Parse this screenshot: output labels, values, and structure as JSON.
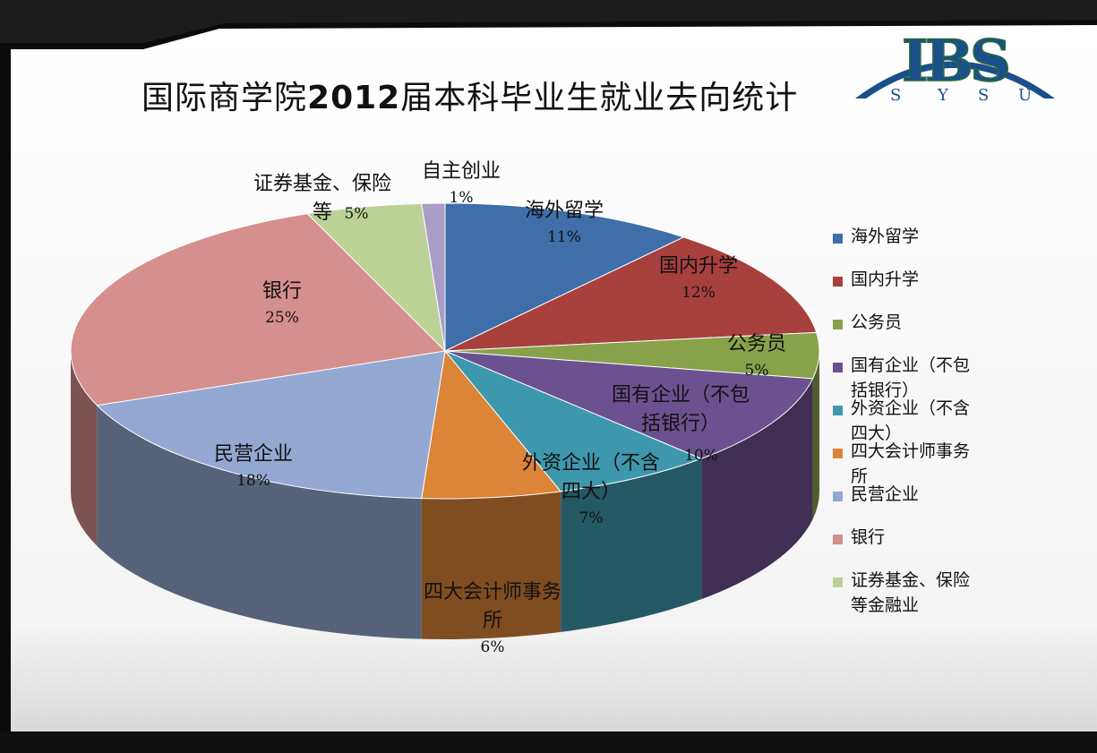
{
  "title": {
    "main": "国际商学院",
    "year": "2012",
    "rest": "届本科毕业生就业去向统计"
  },
  "logo": {
    "letters": "IBS",
    "sub": [
      "S",
      "Y",
      "S",
      "U"
    ],
    "colors": [
      "#1a4f8a",
      "#2a6a3a"
    ]
  },
  "chart_data": {
    "type": "pie",
    "title": "国际商学院2012届本科毕业生就业去向统计",
    "three_d": true,
    "legend_position": "right",
    "slices": [
      {
        "label": "海外留学",
        "legend": "海外留学",
        "value": 11,
        "pct_label": "11%",
        "color": "#3f6ea8"
      },
      {
        "label": "国内升学",
        "legend": "国内升学",
        "value": 12,
        "pct_label": "12%",
        "color": "#a8403e"
      },
      {
        "label": "公务员",
        "legend": "公务员",
        "value": 5,
        "pct_label": "5%",
        "color": "#87a24b"
      },
      {
        "label": "国有企业（不包括银行）",
        "legend": "国有企业（不包括银行）",
        "value": 10,
        "pct_label": "10%",
        "color": "#6c5190"
      },
      {
        "label": "外资企业（不含四大）",
        "legend": "外资企业（不含四大）",
        "value": 7,
        "pct_label": "7%",
        "color": "#3e98ad"
      },
      {
        "label": "四大会计师事务所",
        "legend": "四大会计师事务所",
        "value": 6,
        "pct_label": "6%",
        "color": "#dc8438"
      },
      {
        "label": "民营企业",
        "legend": "民营企业",
        "value": 18,
        "pct_label": "18%",
        "color": "#93a9d2"
      },
      {
        "label": "银行",
        "legend": "银行",
        "value": 25,
        "pct_label": "25%",
        "color": "#d58f8d"
      },
      {
        "label": "证券基金、保险等",
        "legend": "证券基金、保险等金融业",
        "value": 5,
        "pct_label": "5%",
        "color": "#bcd197"
      },
      {
        "label": "自主创业",
        "legend": "",
        "value": 1,
        "pct_label": "1%",
        "color": "#a99cc6"
      }
    ]
  },
  "labels": {
    "s0_l1": "海外留学",
    "s1_l1": "国内升学",
    "s2_l1": "公务员",
    "s3_l1": "国有企业（不包",
    "s3_l2": "括银行）",
    "s4_l1": "外资企业（不含",
    "s4_l2": "四大）",
    "s5_l1": "四大会计师事务",
    "s5_l2": "所",
    "s6_l1": "民营企业",
    "s7_l1": "银行",
    "s8_l1": "证券基金、保险",
    "s8_l2": "等",
    "s9_l1": "自主创业"
  },
  "legend": [
    {
      "l1": "海外留学",
      "l2": "",
      "color": "#3f6ea8"
    },
    {
      "l1": "国内升学",
      "l2": "",
      "color": "#a8403e"
    },
    {
      "l1": "公务员",
      "l2": "",
      "color": "#87a24b"
    },
    {
      "l1": "国有企业（不包",
      "l2": "括银行）",
      "color": "#6c5190"
    },
    {
      "l1": "外资企业（不含",
      "l2": "四大）",
      "color": "#3e98ad"
    },
    {
      "l1": "四大会计师事务",
      "l2": "所",
      "color": "#dc8438"
    },
    {
      "l1": "民营企业",
      "l2": "",
      "color": "#93a9d2"
    },
    {
      "l1": "银行",
      "l2": "",
      "color": "#d58f8d"
    },
    {
      "l1": "证券基金、保险",
      "l2": "等金融业",
      "color": "#bcd197"
    }
  ]
}
